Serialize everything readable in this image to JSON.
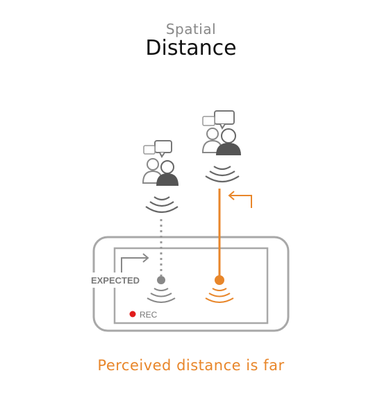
{
  "header": {
    "subtitle": "Spatial",
    "title": "Distance"
  },
  "diagram": {
    "expected_label": "EXPECTED",
    "rec_label": "REC",
    "caption": "Perceived distance is far"
  },
  "colors": {
    "accent": "#e8862a",
    "rec_dot": "#e11c1c",
    "gray": "#888888",
    "dark_gray": "#555555",
    "frame": "#a8a8a8"
  },
  "icons": [
    "people-chat-icon",
    "sound-wave-icon",
    "arrow-icon",
    "phone-frame-icon",
    "rec-dot-icon"
  ]
}
